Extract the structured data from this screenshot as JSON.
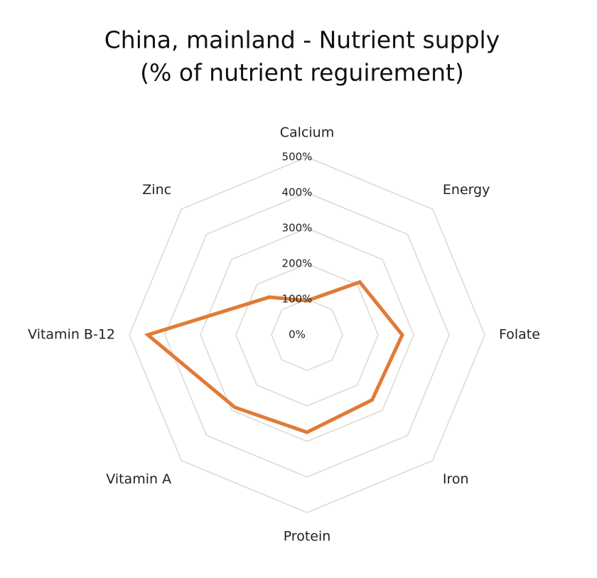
{
  "chart_data": {
    "type": "radar",
    "title": [
      "China, mainland - Nutrient supply",
      "(% of nutrient reguirement)"
    ],
    "categories": [
      "Calcium",
      "Energy",
      "Folate",
      "Iron",
      "Protein",
      "Vitamin A",
      "Vitamin B-12",
      "Zinc"
    ],
    "values": [
      96,
      210,
      268,
      259,
      274,
      288,
      448,
      150
    ],
    "color": "#e07b36",
    "ylim": [
      0,
      500
    ],
    "yticks": [
      {
        "value": 0,
        "label": "0%"
      },
      {
        "value": 100,
        "label": "100%"
      },
      {
        "value": 200,
        "label": "200%"
      },
      {
        "value": 300,
        "label": "300%"
      },
      {
        "value": 400,
        "label": "400%"
      },
      {
        "value": 500,
        "label": "500%"
      }
    ],
    "grid": true
  }
}
